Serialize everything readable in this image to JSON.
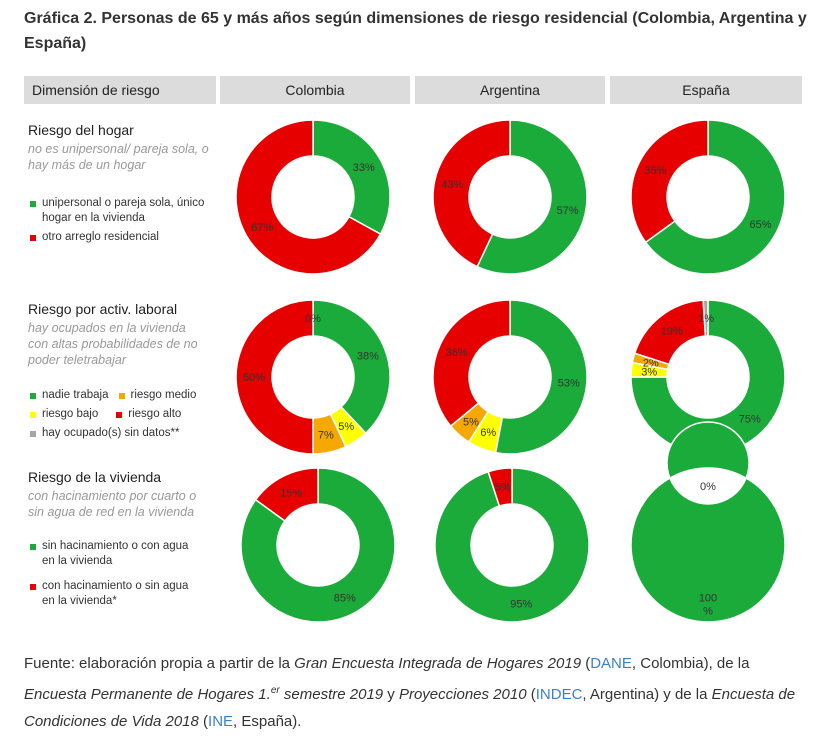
{
  "title": "Gráfica 2. Personas de 65 y más años según dimensiones de riesgo residencial (Colombia, Argentina y España)",
  "headers": [
    "Dimensión de riesgo",
    "Colombia",
    "Argentina",
    "España"
  ],
  "colors": {
    "green": "#1aab3a",
    "red": "#e60000",
    "orange": "#f5a800",
    "yellow": "#ffff00",
    "gray": "#a6a6a6",
    "header_bg": "#dcdcdc",
    "link": "#3a7fd0"
  },
  "rows": [
    {
      "title": "Riesgo del hogar",
      "subtitle": "no es unipersonal/ pareja sola, o hay más de un hogar",
      "legend": [
        {
          "label": "unipersonal o pareja sola, único hogar en la vivienda",
          "color": "#1aab3a"
        },
        {
          "label": "otro arreglo residencial",
          "color": "#e60000"
        }
      ]
    },
    {
      "title": "Riesgo por activ. laboral",
      "subtitle": "hay ocupados en la vivienda con altas probabilidades de no poder teletrabajar",
      "legend": [
        {
          "label": "nadie trabaja",
          "color": "#1aab3a"
        },
        {
          "label": "riesgo medio",
          "color": "#f5a800"
        },
        {
          "label": "riesgo bajo",
          "color": "#ffff00"
        },
        {
          "label": "riesgo alto",
          "color": "#e60000"
        },
        {
          "label": "hay ocupado(s) sin datos**",
          "color": "#a6a6a6"
        }
      ]
    },
    {
      "title": "Riesgo de la vivienda",
      "subtitle": "con hacinamiento por cuarto o sin agua de red en la vivienda",
      "legend": [
        {
          "label": "sin hacinamiento o con agua en la vivienda",
          "color": "#1aab3a"
        },
        {
          "label": "con hacinamiento o sin agua en la vivienda*",
          "color": "#e60000"
        }
      ]
    }
  ],
  "chart_data": [
    {
      "type": "pie",
      "row": "Riesgo del hogar",
      "country": "Colombia",
      "slices": [
        {
          "label": "33%",
          "value": 33,
          "color": "#1aab3a"
        },
        {
          "label": "67%",
          "value": 67,
          "color": "#e60000"
        }
      ]
    },
    {
      "type": "pie",
      "row": "Riesgo del hogar",
      "country": "Argentina",
      "slices": [
        {
          "label": "57%",
          "value": 57,
          "color": "#1aab3a"
        },
        {
          "label": "43%",
          "value": 43,
          "color": "#e60000"
        }
      ]
    },
    {
      "type": "pie",
      "row": "Riesgo del hogar",
      "country": "España",
      "slices": [
        {
          "label": "65%",
          "value": 65,
          "color": "#1aab3a"
        },
        {
          "label": "35%",
          "value": 35,
          "color": "#e60000"
        }
      ]
    },
    {
      "type": "pie",
      "row": "Riesgo por activ. laboral",
      "country": "Colombia",
      "slices": [
        {
          "label": "38%",
          "value": 38,
          "color": "#1aab3a"
        },
        {
          "label": "5%",
          "value": 5,
          "color": "#ffff00"
        },
        {
          "label": "7%",
          "value": 7,
          "color": "#f5a800"
        },
        {
          "label": "50%",
          "value": 50,
          "color": "#e60000"
        },
        {
          "label": "0%",
          "value": 0,
          "color": "#a6a6a6"
        }
      ]
    },
    {
      "type": "pie",
      "row": "Riesgo por activ. laboral",
      "country": "Argentina",
      "slices": [
        {
          "label": "53%",
          "value": 53,
          "color": "#1aab3a"
        },
        {
          "label": "6%",
          "value": 6,
          "color": "#ffff00"
        },
        {
          "label": "5%",
          "value": 5,
          "color": "#f5a800"
        },
        {
          "label": "36%",
          "value": 36,
          "color": "#e60000"
        }
      ]
    },
    {
      "type": "pie",
      "row": "Riesgo por activ. laboral",
      "country": "España",
      "slices": [
        {
          "label": "75%",
          "value": 75,
          "color": "#1aab3a"
        },
        {
          "label": "3%",
          "value": 3,
          "color": "#ffff00"
        },
        {
          "label": "2%",
          "value": 2,
          "color": "#f5a800"
        },
        {
          "label": "19%",
          "value": 19,
          "color": "#e60000"
        },
        {
          "label": "1%",
          "value": 1,
          "color": "#a6a6a6"
        }
      ]
    },
    {
      "type": "pie",
      "row": "Riesgo de la vivienda",
      "country": "Colombia",
      "slices": [
        {
          "label": "85%",
          "value": 85,
          "color": "#1aab3a"
        },
        {
          "label": "15%",
          "value": 15,
          "color": "#e60000"
        }
      ]
    },
    {
      "type": "pie",
      "row": "Riesgo de la vivienda",
      "country": "Argentina",
      "slices": [
        {
          "label": "95%",
          "value": 95,
          "color": "#1aab3a"
        },
        {
          "label": "5%",
          "value": 5,
          "color": "#e60000"
        }
      ]
    },
    {
      "type": "pie",
      "row": "Riesgo de la vivienda",
      "country": "España",
      "slices": [
        {
          "label": "100\n%",
          "value": 100,
          "color": "#1aab3a"
        },
        {
          "label": "0%",
          "value": 0,
          "color": "#e60000"
        }
      ]
    }
  ],
  "source": {
    "p1": "Fuente: elaboración propia a partir de la ",
    "i1": "Gran Encuesta Integrada de Hogares 2019",
    "p2": " (",
    "l1": "DANE",
    "p3": ", Colombia), de la ",
    "i2": "Encuesta Permanente de Hogares 1.",
    "sup": "er",
    "i3": " semestre 2019",
    "p4": " y ",
    "i4": "Proyecciones 2010",
    "p5": " (",
    "l2": "INDEC",
    "p6": ", Argentina) y de la ",
    "i5": "Encuesta de Condiciones de Vida 2018",
    "p7": " (",
    "l3": "INE",
    "p8": ", España)."
  }
}
